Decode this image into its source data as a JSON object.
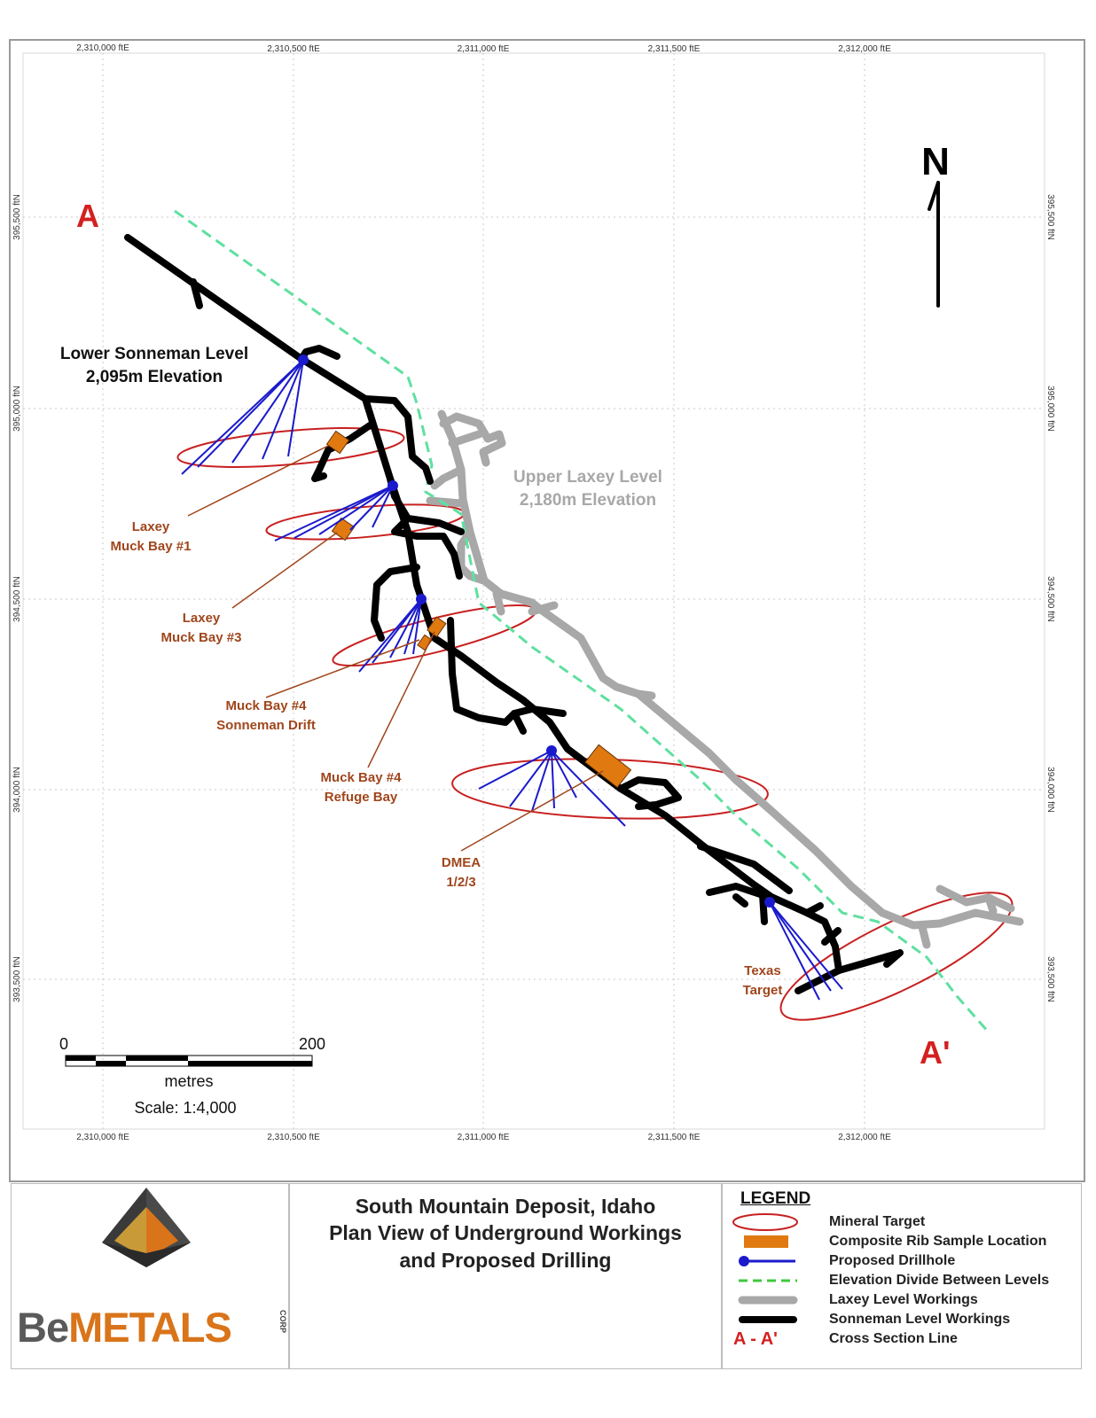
{
  "map": {
    "grid": {
      "eastings_top": [
        "2,310,000 ftE",
        "2,310,500 ftE",
        "2,311,000 ftE",
        "2,311,500 ftE",
        "2,312,000 ftE"
      ],
      "eastings_bottom": [
        "2,310,000 ftE",
        "2,310,500 ftE",
        "2,311,000 ftE",
        "2,311,500 ftE",
        "2,312,000 ftE"
      ],
      "northings": [
        "395,500 ftN",
        "395,000 ftN",
        "394,500 ftN",
        "394,000 ftN",
        "393,500 ftN"
      ]
    },
    "north_arrow_label": "N",
    "section_start_label": "A",
    "section_end_label": "A'",
    "level_labels": {
      "lower_sonneman": [
        "Lower Sonneman Level",
        "2,095m Elevation"
      ],
      "upper_laxey": [
        "Upper Laxey Level",
        "2,180m Elevation"
      ]
    },
    "feature_labels": {
      "laxey_muck_bay_1": [
        "Laxey",
        "Muck Bay #1"
      ],
      "laxey_muck_bay_3": [
        "Laxey",
        "Muck Bay #3"
      ],
      "muck_bay_4_sonneman_drift": [
        "Muck Bay #4",
        "Sonneman Drift"
      ],
      "muck_bay_4_refuge_bay": [
        "Muck Bay #4",
        "Refuge Bay"
      ],
      "dmea": [
        "DMEA",
        "1/2/3"
      ],
      "texas_target": [
        "Texas",
        "Target"
      ]
    },
    "scale_bar": {
      "start_label": "0",
      "end_label": "200",
      "units": "metres",
      "scale_text": "Scale: 1:4,000"
    }
  },
  "title_block": {
    "lines": [
      "South Mountain Deposit, Idaho",
      "Plan View of Underground Workings",
      "and Proposed Drilling"
    ]
  },
  "logo": {
    "brand_be": "Be",
    "brand_metals": "METALS",
    "corp": "CORP"
  },
  "legend": {
    "title": "LEGEND",
    "items": [
      {
        "label": "Mineral Target",
        "symbol": "red-ellipse"
      },
      {
        "label": "Composite Rib Sample Location",
        "symbol": "orange-box"
      },
      {
        "label": "Proposed Drillhole",
        "symbol": "blue-dot-line"
      },
      {
        "label": "Elevation Divide Between Levels",
        "symbol": "green-dashed-line"
      },
      {
        "label": "Laxey Level Workings",
        "symbol": "gray-line"
      },
      {
        "label": "Sonneman Level Workings",
        "symbol": "black-line"
      },
      {
        "label": "Cross Section Line",
        "symbol": "a-a-prime",
        "symbol_text": "A - A'"
      }
    ]
  },
  "colors": {
    "sonneman": "#000000",
    "laxey": "#a8a8a8",
    "divide": "#5fe0a0",
    "target": "#c82020",
    "drillhole": "#1a1acc",
    "sample": "#e07a10",
    "label_brown": "#a0461c",
    "section_red": "#d42020",
    "brand_gray": "#5a5a5a",
    "brand_orange": "#d9741a"
  }
}
